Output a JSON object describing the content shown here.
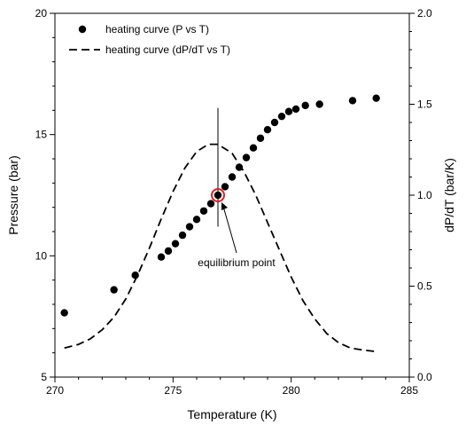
{
  "chart_data": {
    "type": "scatter",
    "xlabel": "Temperature (K)",
    "ylabel": "Pressure (bar)",
    "y2label": "dP/dT (bar/K)",
    "xlim": [
      270,
      285
    ],
    "ylim": [
      5,
      20
    ],
    "y2lim": [
      0.0,
      2.0
    ],
    "xticks": [
      "270",
      "275",
      "280",
      "285"
    ],
    "yticks": [
      "5",
      "10",
      "15",
      "20"
    ],
    "y2ticks": [
      "0.0",
      "0.5",
      "1.0",
      "1.5",
      "2.0"
    ],
    "legend_position": "top-left",
    "grid": false,
    "series": [
      {
        "name": "heating curve (P vs T)",
        "axis": "left",
        "style": "markers",
        "color": "#000000",
        "x": [
          270.4,
          272.5,
          273.4,
          274.5,
          274.8,
          275.1,
          275.4,
          275.7,
          276.0,
          276.3,
          276.6,
          276.9,
          277.2,
          277.5,
          277.8,
          278.1,
          278.4,
          278.7,
          279.0,
          279.3,
          279.6,
          279.9,
          280.2,
          280.6,
          281.2,
          282.6,
          283.6
        ],
        "y": [
          7.65,
          8.6,
          9.2,
          9.95,
          10.2,
          10.5,
          10.85,
          11.2,
          11.5,
          11.85,
          12.15,
          12.5,
          12.85,
          13.25,
          13.65,
          14.05,
          14.45,
          14.85,
          15.2,
          15.5,
          15.75,
          15.95,
          16.05,
          16.2,
          16.25,
          16.4,
          16.5
        ]
      },
      {
        "name": "heating curve (dP/dT vs T)",
        "axis": "right",
        "style": "dashed-line",
        "color": "#000000",
        "x": [
          270.4,
          271.0,
          271.5,
          272.0,
          272.5,
          273.0,
          273.5,
          274.0,
          274.5,
          275.0,
          275.5,
          276.0,
          276.5,
          276.9,
          277.5,
          278.0,
          278.5,
          279.0,
          279.5,
          280.0,
          280.5,
          281.0,
          281.5,
          282.0,
          282.5,
          283.0,
          283.6
        ],
        "y": [
          0.16,
          0.18,
          0.21,
          0.26,
          0.33,
          0.43,
          0.56,
          0.71,
          0.87,
          1.02,
          1.15,
          1.24,
          1.28,
          1.28,
          1.23,
          1.13,
          1.0,
          0.85,
          0.7,
          0.55,
          0.42,
          0.32,
          0.24,
          0.19,
          0.16,
          0.15,
          0.14
        ]
      }
    ],
    "annotations": [
      {
        "text": "equilibrium point",
        "x": 276.9,
        "y": 12.5,
        "marker": "red-circle",
        "marker_color": "#e02020",
        "vertical_line_y": [
          11.2,
          16.1
        ]
      }
    ]
  }
}
